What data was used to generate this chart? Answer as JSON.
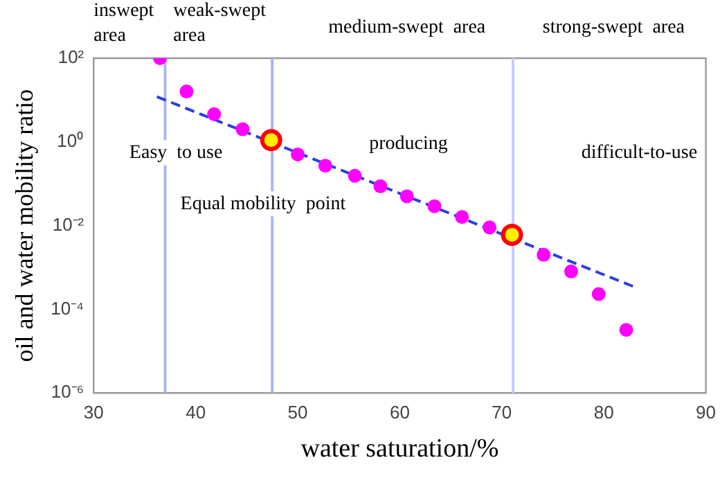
{
  "chart_data": {
    "type": "scatter",
    "xlabel": "water saturation/%",
    "ylabel": "oil and water mobility ratio",
    "log": "y",
    "grid": false,
    "legend": false,
    "marker": "circle",
    "xlim": [
      30,
      90
    ],
    "xticks": [
      30,
      40,
      50,
      60,
      70,
      80,
      90
    ],
    "ylim": [
      1e-06,
      100
    ],
    "yticks": [
      {
        "value": 1e-06,
        "label": "10⁻⁶"
      },
      {
        "value": 0.0001,
        "label": "10⁻⁴"
      },
      {
        "value": 0.01,
        "label": "10⁻²"
      },
      {
        "value": 1,
        "label": "10⁰"
      },
      {
        "value": 100,
        "label": "10²"
      }
    ],
    "series": [
      {
        "type": "line",
        "color": "#2a3fe0",
        "line_style": "dashed",
        "marker": "none",
        "x": [
          36.2,
          83.3
        ],
        "values": [
          12,
          0.00032
        ]
      },
      {
        "type": "scatter",
        "color": "#ff00ff",
        "x": [
          36.5,
          39.1,
          41.8,
          44.6,
          50,
          52.7,
          55.6,
          58.1,
          60.7,
          63.4,
          66.1,
          68.8,
          71.5,
          74.1,
          76.8,
          79.5,
          82.2
        ],
        "values": [
          100,
          16,
          4.6,
          2,
          0.5,
          0.27,
          0.155,
          0.087,
          0.05,
          0.029,
          0.016,
          0.009,
          null,
          0.002,
          0.0008,
          0.00023,
          3.2e-05
        ]
      },
      {
        "type": "scatter",
        "color": "#ffee00",
        "x": [
          47.4,
          71.0
        ],
        "values": [
          1.1,
          0.006
        ]
      }
    ],
    "ref_lines": [
      {
        "axis": "x",
        "value": 37,
        "color": "#aab4ff"
      },
      {
        "axis": "x",
        "value": 47.5,
        "color": "#aab4ff"
      },
      {
        "axis": "x",
        "value": 71.1,
        "color": "#c8ccff"
      }
    ],
    "annotations": [
      "inswept\narea",
      "weak-swept\narea",
      "medium-swept  area",
      "strong-swept  area",
      "Easy  to use",
      "Equal mobility  point",
      "producing",
      "difficult-to-use"
    ]
  }
}
